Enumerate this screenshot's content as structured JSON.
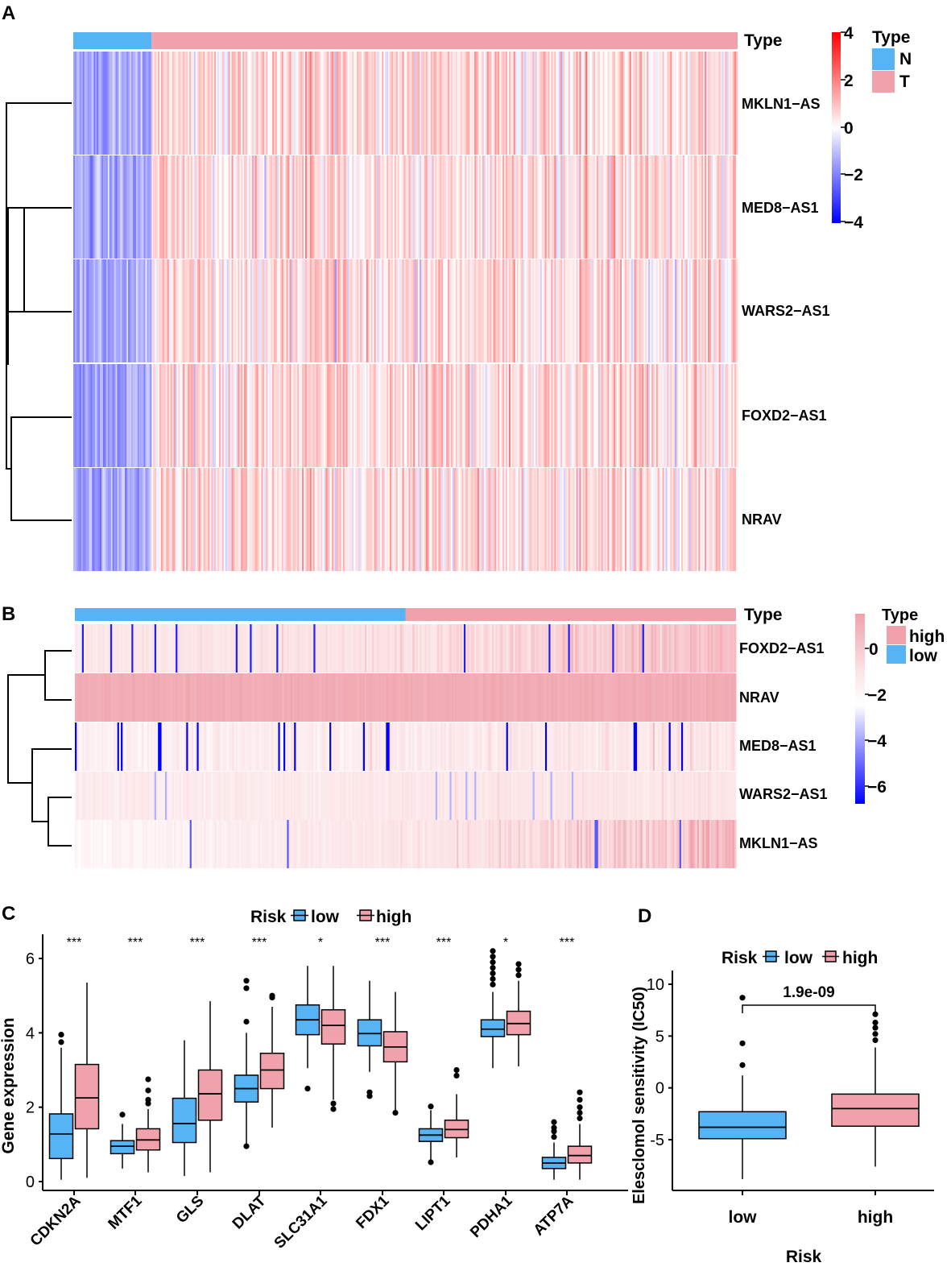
{
  "panels": [
    {
      "letter": "A"
    },
    {
      "letter": "B"
    },
    {
      "letter": "C"
    },
    {
      "letter": "D"
    }
  ],
  "colors": {
    "blue": "#56B4F5",
    "pink": "#F0A1AB",
    "heat_low": "#0000FF",
    "heat_mid": "#FFFFFF",
    "heat_high": "#FF0000",
    "box_low": "#56B4F5",
    "box_high": "#F0A1AB"
  },
  "chart_data": [
    {
      "type": "heatmap",
      "panel": "A",
      "annotation_title": "Type",
      "rows": [
        "MKLN1−AS",
        "MED8−AS1",
        "WARS2−AS1",
        "FOXD2−AS1",
        "NRAV"
      ],
      "columns": {
        "N_count": 50,
        "T_count": 374
      },
      "color_scale": {
        "min": -4,
        "max": 4,
        "ticks": [
          "4",
          "2",
          "0",
          "−2",
          "−4"
        ]
      },
      "legend": {
        "title": "Type",
        "items": [
          {
            "label": "N",
            "color": "#56B4F5"
          },
          {
            "label": "T",
            "color": "#F0A1AB"
          }
        ]
      },
      "pattern": "N samples mostly blue (low), T samples mostly red/pink (high)"
    },
    {
      "type": "heatmap",
      "panel": "B",
      "annotation_title": "Type",
      "rows": [
        "FOXD2−AS1",
        "NRAV",
        "MED8−AS1",
        "WARS2−AS1",
        "MKLN1−AS"
      ],
      "columns": {
        "low_count": 187,
        "high_count": 187
      },
      "color_scale": {
        "min": -6,
        "max": 1,
        "ticks": [
          "0",
          "−2",
          "−4",
          "−6"
        ]
      },
      "legend": {
        "title": "Type",
        "items": [
          {
            "label": "high",
            "color": "#F0A1AB"
          },
          {
            "label": "low",
            "color": "#56B4F5"
          }
        ]
      }
    },
    {
      "type": "boxplot",
      "panel": "C",
      "legend_title": "Risk",
      "legend": [
        {
          "label": "low",
          "color": "#56B4F5"
        },
        {
          "label": "high",
          "color": "#F0A1AB"
        }
      ],
      "ylabel": "Gene expression",
      "ylim": [
        -0.1,
        6.6
      ],
      "yticks": [
        0,
        2,
        4,
        6
      ],
      "categories": [
        "CDKN2A",
        "MTF1",
        "GLS",
        "DLAT",
        "SLC31A1",
        "FDX1",
        "LIPT1",
        "PDHA1",
        "ATP7A"
      ],
      "significance": [
        "***",
        "***",
        "***",
        "***",
        "*",
        "***",
        "***",
        "*",
        "***"
      ],
      "series": [
        {
          "name": "low",
          "boxes": [
            {
              "min": 0.05,
              "q1": 0.62,
              "median": 1.28,
              "q3": 1.82,
              "max": 3.6,
              "outliers": [
                3.95,
                3.75
              ]
            },
            {
              "min": 0.35,
              "q1": 0.75,
              "median": 0.95,
              "q3": 1.1,
              "max": 1.55,
              "outliers": [
                1.8
              ]
            },
            {
              "min": 0.15,
              "q1": 1.05,
              "median": 1.56,
              "q3": 2.24,
              "max": 3.8,
              "outliers": []
            },
            {
              "min": 0.95,
              "q1": 2.14,
              "median": 2.5,
              "q3": 2.86,
              "max": 4.0,
              "outliers": [
                0.95,
                4.3,
                5.2,
                5.4
              ]
            },
            {
              "min": 3.05,
              "q1": 3.95,
              "median": 4.35,
              "q3": 4.75,
              "max": 5.8,
              "outliers": [
                2.5
              ]
            },
            {
              "min": 2.95,
              "q1": 3.65,
              "median": 3.98,
              "q3": 4.35,
              "max": 5.4,
              "outliers": [
                2.4,
                2.3
              ]
            },
            {
              "min": 0.55,
              "q1": 1.08,
              "median": 1.25,
              "q3": 1.42,
              "max": 1.92,
              "outliers": [
                0.52,
                2.02
              ]
            },
            {
              "min": 3.05,
              "q1": 3.9,
              "median": 4.1,
              "q3": 4.35,
              "max": 5.1,
              "outliers": [
                5.3,
                5.45,
                5.6,
                5.75,
                5.9,
                6.05,
                6.2
              ]
            },
            {
              "min": 0.05,
              "q1": 0.35,
              "median": 0.5,
              "q3": 0.65,
              "max": 1.05,
              "outliers": [
                1.2,
                1.35,
                1.45,
                1.6
              ]
            }
          ]
        },
        {
          "name": "high",
          "boxes": [
            {
              "min": 0.1,
              "q1": 1.42,
              "median": 2.25,
              "q3": 3.15,
              "max": 5.35,
              "outliers": []
            },
            {
              "min": 0.25,
              "q1": 0.85,
              "median": 1.12,
              "q3": 1.42,
              "max": 1.95,
              "outliers": [
                2.1,
                2.2,
                2.45,
                2.75
              ]
            },
            {
              "min": 0.25,
              "q1": 1.65,
              "median": 2.36,
              "q3": 3.0,
              "max": 4.85,
              "outliers": []
            },
            {
              "min": 1.45,
              "q1": 2.5,
              "median": 3.0,
              "q3": 3.45,
              "max": 4.7,
              "outliers": [
                4.95,
                5.0
              ]
            },
            {
              "min": 2.2,
              "q1": 3.7,
              "median": 4.2,
              "q3": 4.62,
              "max": 5.8,
              "outliers": [
                2.1,
                1.95
              ]
            },
            {
              "min": 1.9,
              "q1": 3.22,
              "median": 3.62,
              "q3": 4.03,
              "max": 5.1,
              "outliers": [
                1.85
              ]
            },
            {
              "min": 0.65,
              "q1": 1.18,
              "median": 1.4,
              "q3": 1.65,
              "max": 2.35,
              "outliers": [
                2.85,
                3.0
              ]
            },
            {
              "min": 3.1,
              "q1": 3.95,
              "median": 4.25,
              "q3": 4.58,
              "max": 5.4,
              "outliers": [
                5.55,
                5.7,
                5.85
              ]
            },
            {
              "min": 0.05,
              "q1": 0.5,
              "median": 0.7,
              "q3": 0.95,
              "max": 1.55,
              "outliers": [
                1.7,
                1.85,
                2.0,
                2.2,
                2.4
              ]
            }
          ]
        }
      ]
    },
    {
      "type": "boxplot",
      "panel": "D",
      "legend_title": "Risk",
      "legend": [
        {
          "label": "low",
          "color": "#56B4F5"
        },
        {
          "label": "high",
          "color": "#F0A1AB"
        }
      ],
      "xlabel": "Risk",
      "ylabel": "Elesclomol sensitivity (IC50)",
      "categories": [
        "low",
        "high"
      ],
      "ylim": [
        -9.8,
        11
      ],
      "yticks": [
        10,
        5,
        0,
        -5
      ],
      "ytick_labels": [
        "10",
        "5",
        "0",
        "-5"
      ],
      "pvalue": "1.9e-09",
      "boxes": [
        {
          "name": "low",
          "min": -8.8,
          "q1": -4.9,
          "median": -3.8,
          "q3": -2.3,
          "max": 1.2,
          "outliers": [
            2.2,
            4.3,
            8.7
          ]
        },
        {
          "name": "high",
          "min": -7.6,
          "q1": -3.7,
          "median": -2.0,
          "q3": -0.6,
          "max": 3.9,
          "outliers": [
            4.6,
            5.2,
            5.8,
            6.3,
            7.1
          ]
        }
      ]
    }
  ]
}
